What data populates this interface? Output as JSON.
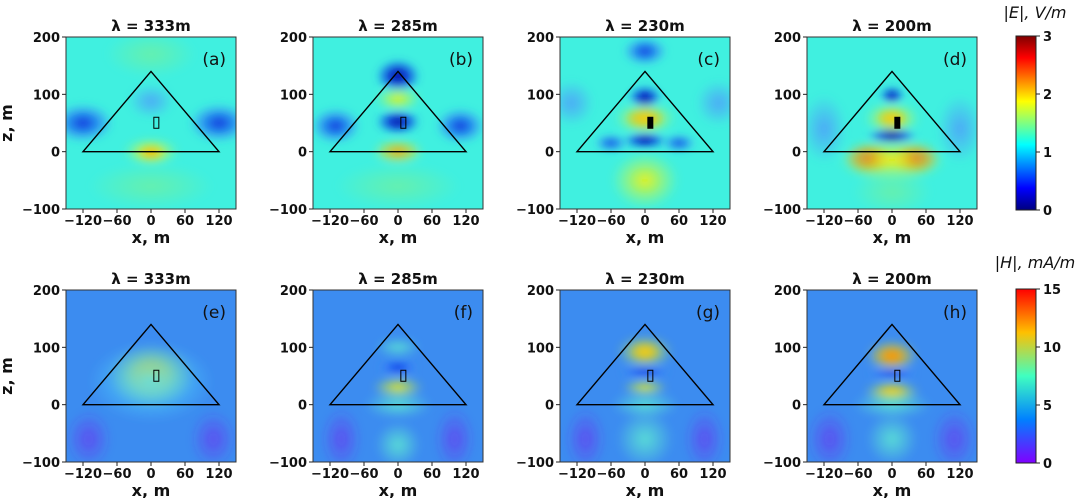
{
  "figure": {
    "e_colorbar": {
      "title": "|E|, V/m",
      "ticks": [
        "3",
        "2",
        "1",
        "0"
      ],
      "max": 3
    },
    "h_colorbar": {
      "title": "|H|, mA/m",
      "ticks": [
        "15",
        "10",
        "5",
        "0"
      ],
      "max": 15
    }
  },
  "chart_data": [
    {
      "type": "heatmap",
      "panel": "(a)",
      "title": "λ = 333m",
      "field": "E",
      "xlabel": "x, m",
      "ylabel": "z, m",
      "xticks": [
        "−120",
        "−60",
        "0",
        "60",
        "120"
      ],
      "yticks": [
        "200",
        "100",
        "0",
        "−100"
      ],
      "xlim": [
        -150,
        150
      ],
      "ylim": [
        -100,
        200
      ],
      "triangle": [
        [
          -120,
          0
        ],
        [
          0,
          140
        ],
        [
          120,
          0
        ]
      ],
      "clim": [
        0,
        3
      ]
    },
    {
      "type": "heatmap",
      "panel": "(b)",
      "title": "λ = 285m",
      "field": "E",
      "xlabel": "x, m",
      "ylabel": "",
      "xticks": [
        "−120",
        "−60",
        "0",
        "60",
        "120"
      ],
      "yticks": [
        "200",
        "100",
        "0",
        "−100"
      ],
      "xlim": [
        -150,
        150
      ],
      "ylim": [
        -100,
        200
      ],
      "triangle": [
        [
          -120,
          0
        ],
        [
          0,
          140
        ],
        [
          120,
          0
        ]
      ],
      "clim": [
        0,
        3
      ]
    },
    {
      "type": "heatmap",
      "panel": "(c)",
      "title": "λ = 230m",
      "field": "E",
      "xlabel": "x, m",
      "ylabel": "",
      "xticks": [
        "−120",
        "−60",
        "0",
        "60",
        "120"
      ],
      "yticks": [
        "200",
        "100",
        "0",
        "−100"
      ],
      "xlim": [
        -150,
        150
      ],
      "ylim": [
        -100,
        200
      ],
      "triangle": [
        [
          -120,
          0
        ],
        [
          0,
          140
        ],
        [
          120,
          0
        ]
      ],
      "clim": [
        0,
        3
      ]
    },
    {
      "type": "heatmap",
      "panel": "(d)",
      "title": "λ = 200m",
      "field": "E",
      "xlabel": "x, m",
      "ylabel": "",
      "xticks": [
        "−120",
        "−60",
        "0",
        "60",
        "120"
      ],
      "yticks": [
        "200",
        "100",
        "0",
        "−100"
      ],
      "xlim": [
        -150,
        150
      ],
      "ylim": [
        -100,
        200
      ],
      "triangle": [
        [
          -120,
          0
        ],
        [
          0,
          140
        ],
        [
          120,
          0
        ]
      ],
      "clim": [
        0,
        3
      ]
    },
    {
      "type": "heatmap",
      "panel": "(e)",
      "title": "λ = 333m",
      "field": "H",
      "xlabel": "x, m",
      "ylabel": "z, m",
      "xticks": [
        "−120",
        "−60",
        "0",
        "60",
        "120"
      ],
      "yticks": [
        "200",
        "100",
        "0",
        "−100"
      ],
      "xlim": [
        -150,
        150
      ],
      "ylim": [
        -100,
        200
      ],
      "triangle": [
        [
          -120,
          0
        ],
        [
          0,
          140
        ],
        [
          120,
          0
        ]
      ],
      "clim": [
        0,
        15
      ]
    },
    {
      "type": "heatmap",
      "panel": "(f)",
      "title": "λ = 285m",
      "field": "H",
      "xlabel": "x, m",
      "ylabel": "",
      "xticks": [
        "−120",
        "−60",
        "0",
        "60",
        "120"
      ],
      "yticks": [
        "200",
        "100",
        "0",
        "−100"
      ],
      "xlim": [
        -150,
        150
      ],
      "ylim": [
        -100,
        200
      ],
      "triangle": [
        [
          -120,
          0
        ],
        [
          0,
          140
        ],
        [
          120,
          0
        ]
      ],
      "clim": [
        0,
        15
      ]
    },
    {
      "type": "heatmap",
      "panel": "(g)",
      "title": "λ = 230m",
      "field": "H",
      "xlabel": "x, m",
      "ylabel": "",
      "xticks": [
        "−120",
        "−60",
        "0",
        "60",
        "120"
      ],
      "yticks": [
        "200",
        "100",
        "0",
        "−100"
      ],
      "xlim": [
        -150,
        150
      ],
      "ylim": [
        -100,
        200
      ],
      "triangle": [
        [
          -120,
          0
        ],
        [
          0,
          140
        ],
        [
          120,
          0
        ]
      ],
      "clim": [
        0,
        15
      ]
    },
    {
      "type": "heatmap",
      "panel": "(h)",
      "title": "λ = 200m",
      "field": "H",
      "xlabel": "x, m",
      "ylabel": "",
      "xticks": [
        "−120",
        "−60",
        "0",
        "60",
        "120"
      ],
      "yticks": [
        "200",
        "100",
        "0",
        "−100"
      ],
      "xlim": [
        -150,
        150
      ],
      "ylim": [
        -100,
        200
      ],
      "triangle": [
        [
          -120,
          0
        ],
        [
          0,
          140
        ],
        [
          120,
          0
        ]
      ],
      "clim": [
        0,
        15
      ]
    }
  ]
}
